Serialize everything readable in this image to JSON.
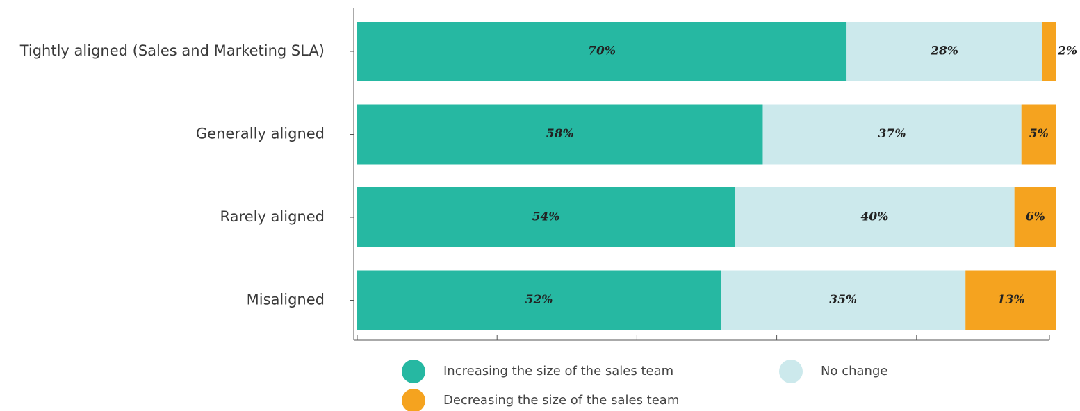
{
  "chart_data": {
    "type": "stacked-bar-horizontal",
    "categories": [
      "Tightly aligned (Sales and Marketing SLA)",
      "Generally aligned",
      "Rarely aligned",
      "Misaligned"
    ],
    "series": [
      {
        "name": "Increasing the size of the sales team",
        "color": "#26b8a2",
        "values": [
          70,
          58,
          54,
          52
        ],
        "value_labels": [
          "70%",
          "58%",
          "54%",
          "52%"
        ]
      },
      {
        "name": "No change",
        "color": "#cce9ec",
        "values": [
          28,
          37,
          40,
          35
        ],
        "value_labels": [
          "28%",
          "37%",
          "40%",
          "35%"
        ]
      },
      {
        "name": "Decreasing the size of the sales team",
        "color": "#f5a31f",
        "values": [
          2,
          5,
          6,
          13
        ],
        "value_labels": [
          "2%",
          "5%",
          "6%",
          "13%"
        ]
      }
    ],
    "xlim": [
      0,
      100
    ],
    "xticks": [
      0,
      20,
      40,
      60,
      80,
      100
    ]
  }
}
